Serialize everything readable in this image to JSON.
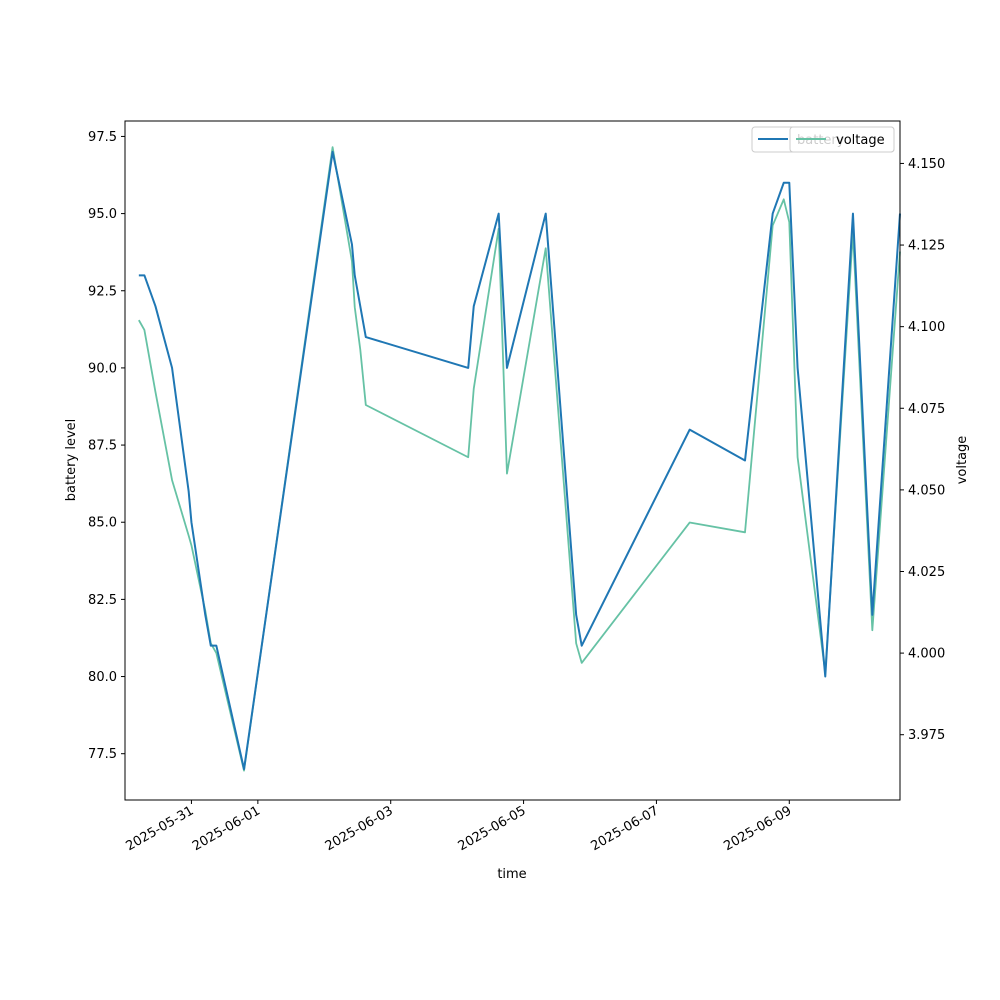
{
  "chart_data": {
    "type": "line",
    "xlabel": "time",
    "ylabel_left": "battery level",
    "ylabel_right": "voltage",
    "left_ylim": [
      76.0,
      98.0
    ],
    "right_ylim": [
      3.955,
      4.163
    ],
    "left_ticks": [
      "77.5",
      "80.0",
      "82.5",
      "85.0",
      "87.5",
      "90.0",
      "92.5",
      "95.0",
      "97.5"
    ],
    "right_ticks": [
      "3.975",
      "4.000",
      "4.025",
      "4.050",
      "4.075",
      "4.100",
      "4.125",
      "4.150"
    ],
    "x_ticks": [
      "2025-05-31",
      "2025-06-01",
      "2025-06-03",
      "2025-06-05",
      "2025-06-07",
      "2025-06-09"
    ],
    "xlim": [
      "2025-05-30 00:00",
      "2025-06-10 16:00"
    ],
    "grid": false,
    "legend": {
      "position": "top-right",
      "labels": [
        "battery",
        "voltage"
      ]
    },
    "series": [
      {
        "name": "battery",
        "axis": "left",
        "color": "#1f77b4",
        "points": [
          [
            "2025-05-30 05:00",
            93
          ],
          [
            "2025-05-30 07:00",
            93
          ],
          [
            "2025-05-30 11:00",
            92
          ],
          [
            "2025-05-30 17:00",
            90
          ],
          [
            "2025-05-30 23:00",
            86
          ],
          [
            "2025-05-31 00:00",
            85
          ],
          [
            "2025-05-31 05:00",
            82
          ],
          [
            "2025-05-31 07:00",
            81
          ],
          [
            "2025-05-31 09:00",
            81
          ],
          [
            "2025-05-31 19:00",
            77
          ],
          [
            "2025-06-02 03:00",
            97
          ],
          [
            "2025-06-02 10:00",
            94
          ],
          [
            "2025-06-02 11:00",
            93
          ],
          [
            "2025-06-02 13:00",
            92
          ],
          [
            "2025-06-02 15:00",
            91
          ],
          [
            "2025-06-04 04:00",
            90
          ],
          [
            "2025-06-04 06:00",
            92
          ],
          [
            "2025-06-04 15:00",
            95
          ],
          [
            "2025-06-04 18:00",
            90
          ],
          [
            "2025-06-05 08:00",
            95
          ],
          [
            "2025-06-05 19:00",
            82
          ],
          [
            "2025-06-05 21:00",
            81
          ],
          [
            "2025-06-07 12:00",
            88
          ],
          [
            "2025-06-08 08:00",
            87
          ],
          [
            "2025-06-08 18:00",
            95
          ],
          [
            "2025-06-08 22:00",
            96
          ],
          [
            "2025-06-09 00:00",
            96
          ],
          [
            "2025-06-09 03:00",
            90
          ],
          [
            "2025-06-09 13:00",
            80
          ],
          [
            "2025-06-09 23:00",
            95
          ],
          [
            "2025-06-10 06:00",
            82
          ],
          [
            "2025-06-10 16:00",
            95
          ]
        ]
      },
      {
        "name": "voltage",
        "axis": "right",
        "color": "#66c2a5",
        "points": [
          [
            "2025-05-30 05:00",
            4.102
          ],
          [
            "2025-05-30 07:00",
            4.099
          ],
          [
            "2025-05-30 11:00",
            4.08
          ],
          [
            "2025-05-30 17:00",
            4.053
          ],
          [
            "2025-05-30 23:00",
            4.036
          ],
          [
            "2025-05-31 00:00",
            4.033
          ],
          [
            "2025-05-31 05:00",
            4.013
          ],
          [
            "2025-05-31 07:00",
            4.003
          ],
          [
            "2025-05-31 09:00",
            4.0
          ],
          [
            "2025-05-31 19:00",
            3.964
          ],
          [
            "2025-06-02 03:00",
            4.155
          ],
          [
            "2025-06-02 10:00",
            4.12
          ],
          [
            "2025-06-02 11:00",
            4.106
          ],
          [
            "2025-06-02 13:00",
            4.093
          ],
          [
            "2025-06-02 15:00",
            4.076
          ],
          [
            "2025-06-04 04:00",
            4.06
          ],
          [
            "2025-06-04 06:00",
            4.081
          ],
          [
            "2025-06-04 15:00",
            4.13
          ],
          [
            "2025-06-04 18:00",
            4.055
          ],
          [
            "2025-06-05 08:00",
            4.124
          ],
          [
            "2025-06-05 19:00",
            4.003
          ],
          [
            "2025-06-05 21:00",
            3.997
          ],
          [
            "2025-06-07 12:00",
            4.04
          ],
          [
            "2025-06-08 08:00",
            4.037
          ],
          [
            "2025-06-08 18:00",
            4.131
          ],
          [
            "2025-06-08 22:00",
            4.139
          ],
          [
            "2025-06-09 00:00",
            4.132
          ],
          [
            "2025-06-09 03:00",
            4.06
          ],
          [
            "2025-06-09 13:00",
            3.994
          ],
          [
            "2025-06-09 23:00",
            4.129
          ],
          [
            "2025-06-10 06:00",
            4.007
          ],
          [
            "2025-06-10 16:00",
            4.123
          ]
        ]
      }
    ]
  }
}
